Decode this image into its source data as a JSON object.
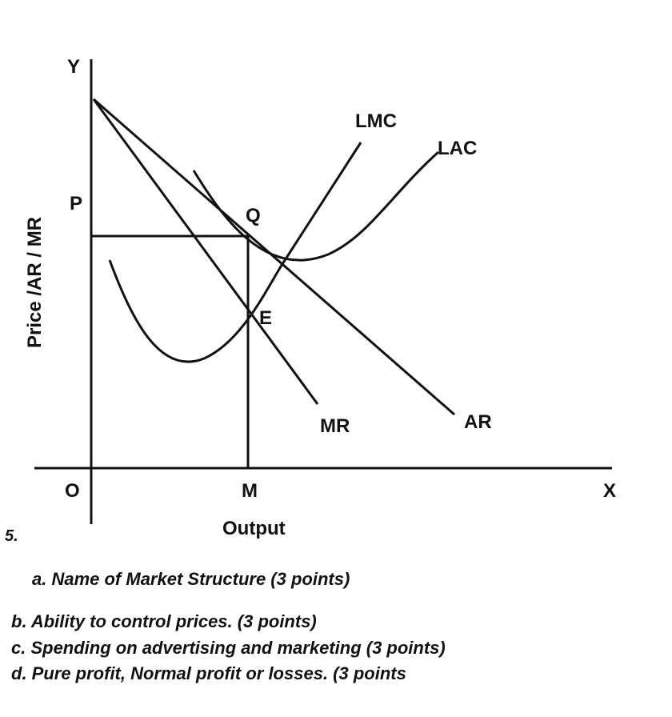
{
  "diagram": {
    "axis_labels": {
      "y": "Y",
      "x": "X",
      "origin": "O"
    },
    "y_axis_title": "Price /AR / MR",
    "x_axis_title": "Output",
    "points": {
      "p": "P",
      "m": "M",
      "q": "Q",
      "e": "E"
    },
    "curves": {
      "lmc": "LMC",
      "lac": "LAC",
      "mr": "MR",
      "ar": "AR"
    }
  },
  "question_number": "5.",
  "questions": {
    "a": "a.  Name of Market Structure (3 points)",
    "b": "b. Ability to control prices. (3 points)",
    "c": "c. Spending on advertising and marketing (3 points)",
    "d": "d. Pure profit, Normal profit or losses. (3 points"
  }
}
